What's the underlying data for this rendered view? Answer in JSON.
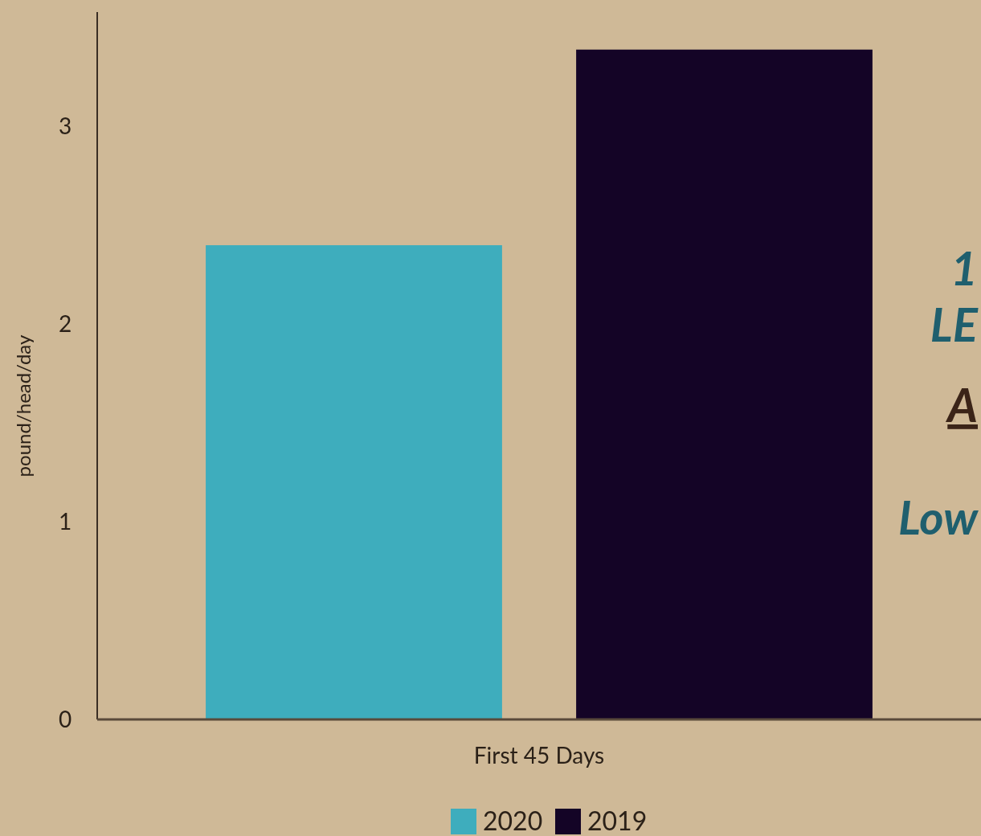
{
  "chart_data": {
    "type": "bar",
    "ylabel": "pound/head/day",
    "categories": [
      "First 45 Days"
    ],
    "series": [
      {
        "name": "2020",
        "color": "#3eadbd",
        "values": [
          2.4
        ]
      },
      {
        "name": "2019",
        "color": "#140426",
        "values": [
          3.39
        ]
      }
    ],
    "ylim": [
      0,
      3.58
    ],
    "yticks": [
      0,
      1,
      2,
      3
    ],
    "grid": false,
    "legend": "bottom",
    "annotations": [
      "1",
      "LE",
      "A",
      "Low"
    ]
  }
}
